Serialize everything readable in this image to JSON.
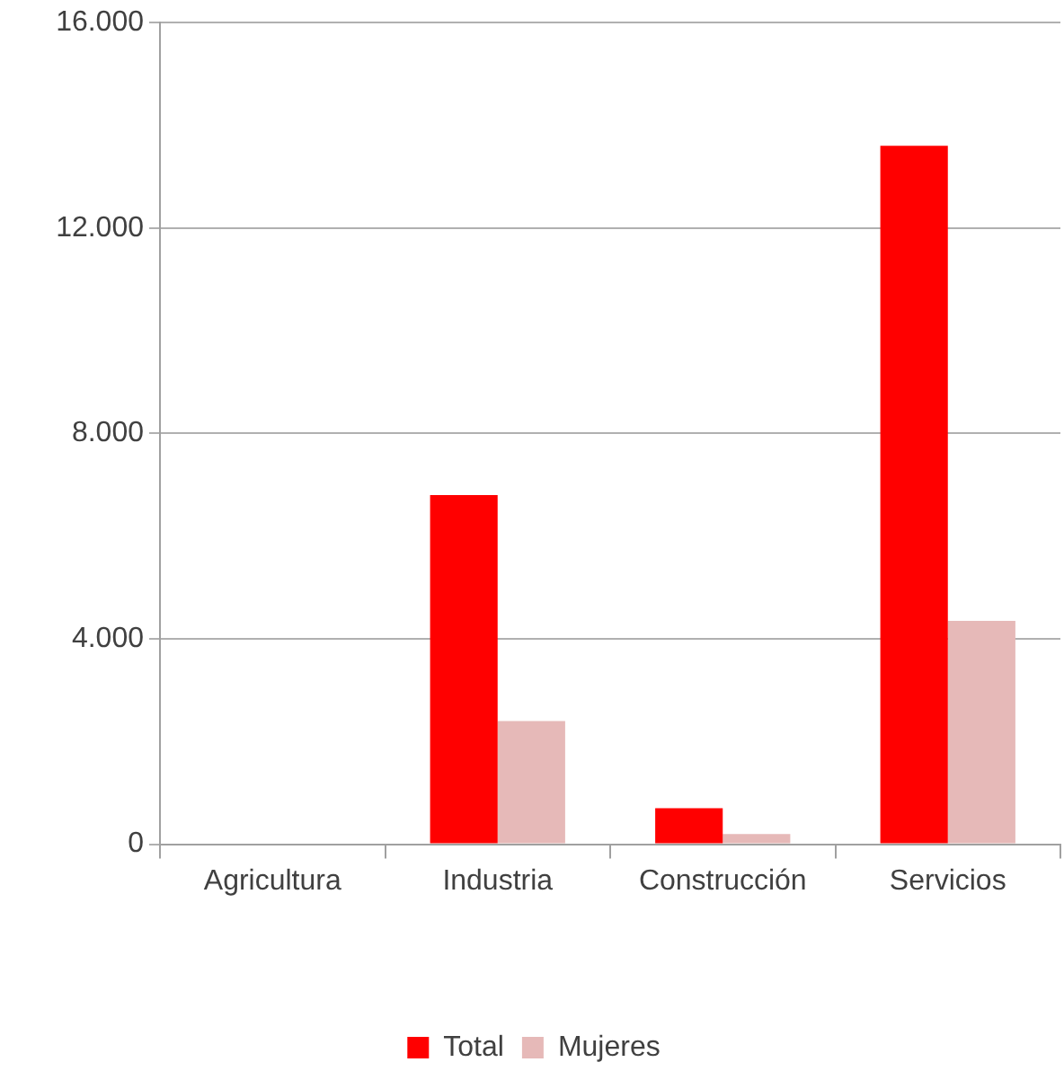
{
  "chart_data": {
    "type": "bar",
    "categories": [
      "Agricultura",
      "Industria",
      "Construcción",
      "Servicios"
    ],
    "series": [
      {
        "name": "Total",
        "color": "#ff0000",
        "values": [
          0,
          6800,
          700,
          13600
        ]
      },
      {
        "name": "Mujeres",
        "color": "#e6b9b8",
        "values": [
          0,
          2400,
          200,
          4350
        ]
      }
    ],
    "ylim": [
      0,
      16000
    ],
    "yticks": [
      {
        "value": 0,
        "label": "0"
      },
      {
        "value": 4000,
        "label": "4.000"
      },
      {
        "value": 8000,
        "label": "8.000"
      },
      {
        "value": 12000,
        "label": "12.000"
      },
      {
        "value": 16000,
        "label": "16.000"
      }
    ],
    "grid": "y",
    "legend": "bottom"
  }
}
